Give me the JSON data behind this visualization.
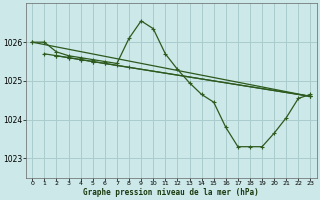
{
  "title": "Graphe pression niveau de la mer (hPa)",
  "bg_color": "#cce8e8",
  "grid_color": "#aacccc",
  "line_color": "#2d5a1e",
  "xlim": [
    -0.5,
    23.5
  ],
  "ylim": [
    1022.5,
    1027.0
  ],
  "yticks": [
    1023,
    1024,
    1025,
    1026
  ],
  "xticks": [
    0,
    1,
    2,
    3,
    4,
    5,
    6,
    7,
    8,
    9,
    10,
    11,
    12,
    13,
    14,
    15,
    16,
    17,
    18,
    19,
    20,
    21,
    22,
    23
  ],
  "series": [
    {
      "x": [
        0,
        1,
        2,
        3,
        4,
        5,
        6,
        7,
        8,
        9,
        10,
        11,
        12,
        13,
        14,
        15,
        16,
        17,
        18,
        19,
        20,
        21,
        22,
        23
      ],
      "y": [
        1026.0,
        1026.0,
        1025.75,
        1025.65,
        1025.6,
        1025.55,
        1025.5,
        1025.45,
        1026.1,
        1026.55,
        1026.35,
        1025.7,
        1025.3,
        1024.95,
        1024.65,
        1024.45,
        1023.8,
        1023.3,
        1023.3,
        1023.3,
        1023.65,
        1024.05,
        1024.55,
        1024.65
      ]
    },
    {
      "x": [
        0,
        23
      ],
      "y": [
        1026.0,
        1024.6
      ]
    },
    {
      "x": [
        1,
        2,
        3,
        4,
        5,
        6,
        23
      ],
      "y": [
        1025.7,
        1025.65,
        1025.6,
        1025.55,
        1025.5,
        1025.45,
        1024.6
      ]
    },
    {
      "x": [
        2,
        3,
        4,
        5,
        6,
        7,
        8,
        23
      ],
      "y": [
        1025.65,
        1025.6,
        1025.55,
        1025.5,
        1025.45,
        1025.4,
        1025.35,
        1024.6
      ]
    }
  ]
}
